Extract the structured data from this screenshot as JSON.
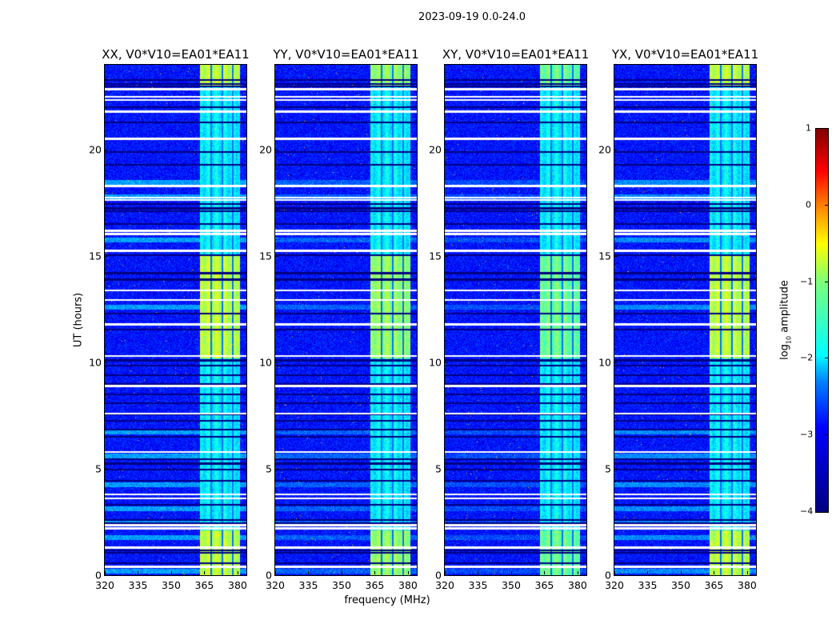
{
  "suptitle": "2023-09-19 0.0-24.0",
  "chart_data": {
    "type": "heatmap",
    "title": "2023-09-19 0.0-24.0",
    "panels": [
      {
        "title": "XX, V0*V10=EA01*EA11",
        "band_level": -1.2,
        "bright_rows_level": -2.6
      },
      {
        "title": "YY, V0*V10=EA01*EA11",
        "band_level": -1.4,
        "bright_rows_level": -2.9
      },
      {
        "title": "XY, V0*V10=EA01*EA11",
        "band_level": -1.6,
        "bright_rows_level": -3.0
      },
      {
        "title": "YX, V0*V10=EA01*EA11",
        "band_level": -1.2,
        "bright_rows_level": -2.7
      }
    ],
    "xlabel": "frequency (MHz)",
    "ylabel": "UT (hours)",
    "xlim": [
      320,
      384
    ],
    "ylim": [
      0,
      24
    ],
    "xticks": [
      "320",
      "335",
      "350",
      "365",
      "380"
    ],
    "yticks": [
      "0",
      "5",
      "10",
      "15",
      "20"
    ],
    "background_level": -3.3,
    "band_MHz": [
      363,
      381
    ],
    "band_gaps_MHz": [
      368,
      373,
      378
    ],
    "strong_band_hours": [
      [
        0,
        2.1
      ],
      [
        10.2,
        15.1
      ],
      [
        23.0,
        24
      ]
    ],
    "flagged_rows_hours": [
      0.4,
      1.3,
      2.2,
      2.35,
      3.6,
      3.8,
      5.8,
      7.6,
      8.9,
      10.3,
      11.8,
      12.95,
      13.4,
      15.25,
      16.05,
      16.2,
      17.65,
      17.75,
      18.3,
      20.5,
      20.55,
      21.8,
      22.35,
      22.5,
      22.85
    ],
    "gap_rows_hours": [
      0.55,
      1.05,
      1.15,
      2.45,
      2.6,
      3.3,
      4.45,
      4.95,
      5.25,
      5.45,
      6.5,
      6.85,
      7.25,
      7.55,
      8.1,
      8.5,
      9.0,
      9.4,
      9.85,
      10.1,
      11.55,
      12.3,
      13.9,
      14.2,
      15.05,
      16.5,
      17.1,
      17.25,
      17.45,
      19.3,
      19.9,
      21.3,
      22.0,
      23.0,
      23.1,
      23.3
    ],
    "colorbar": {
      "label": "log10 amplitude",
      "label_main": "log",
      "label_sub": "10",
      "label_rest": " amplitude",
      "range": [
        -4,
        1
      ],
      "ticks": [
        "1",
        "0",
        "−1",
        "−2",
        "−3",
        "−4"
      ],
      "colormap": "jet"
    }
  }
}
